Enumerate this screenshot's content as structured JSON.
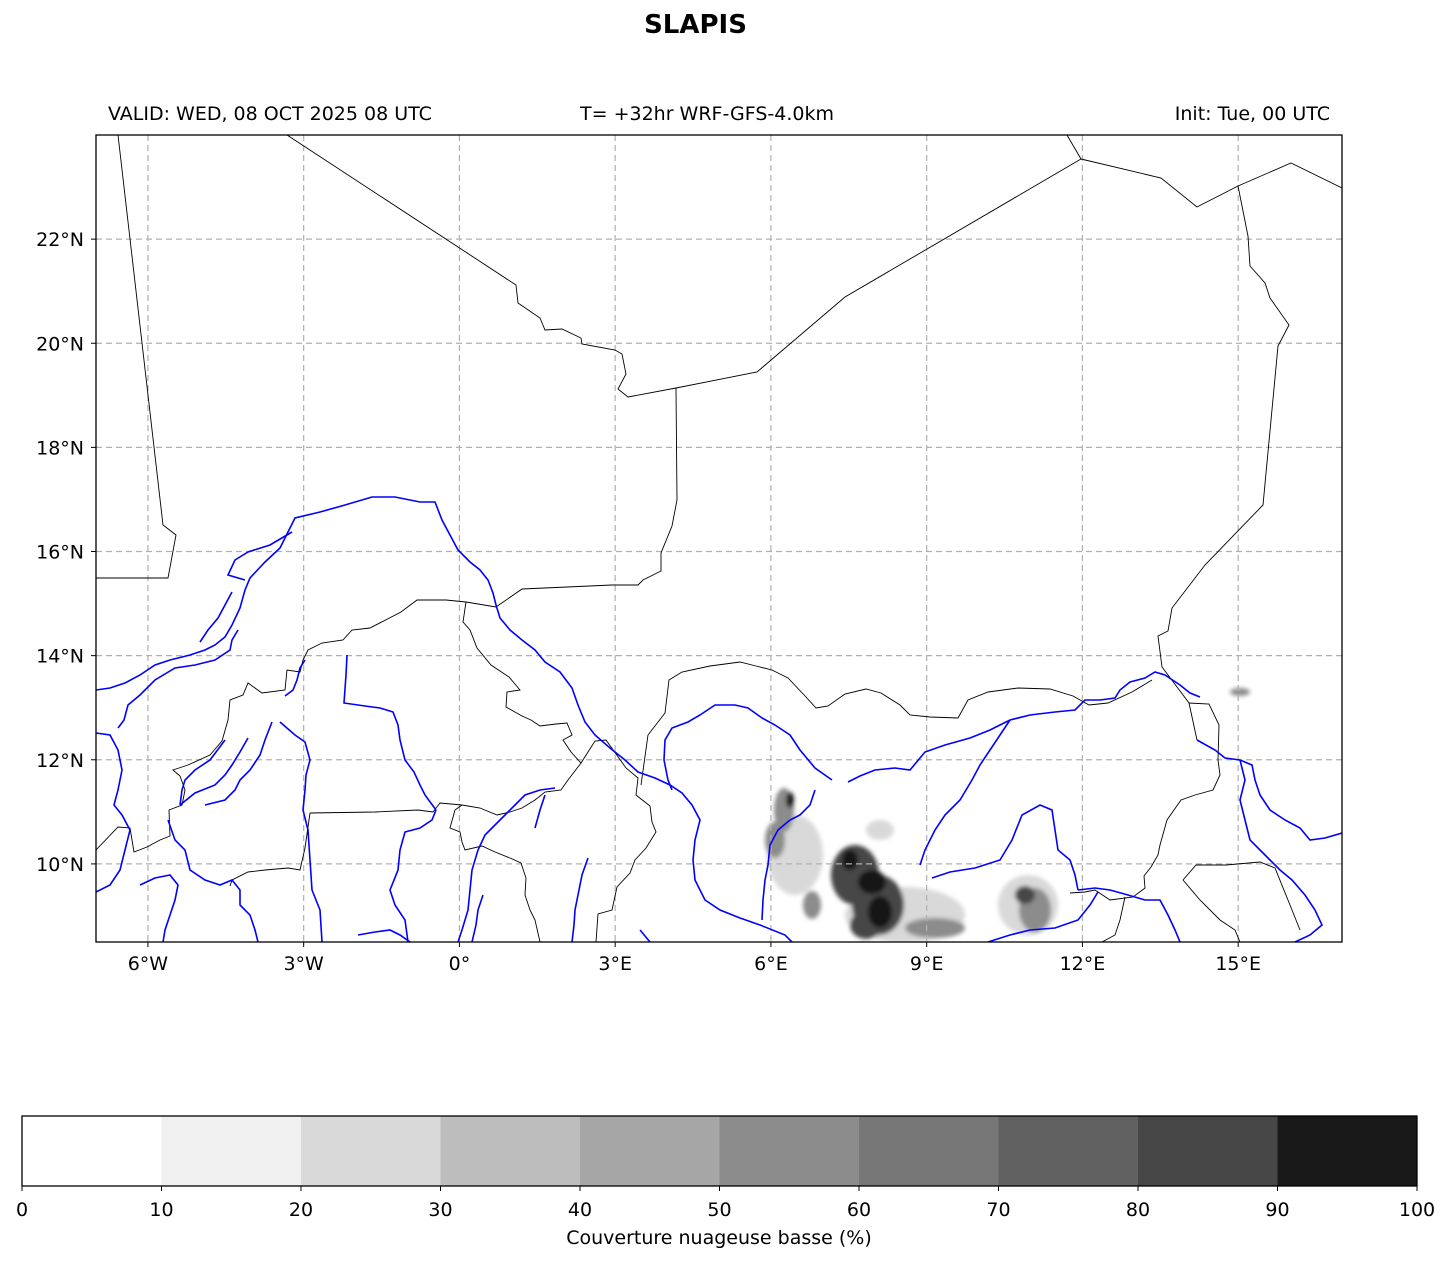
{
  "title": "SLAPIS",
  "header": {
    "valid": "VALID: WED, 08 OCT 2025 08 UTC",
    "forecast": "T= +32hr WRF-GFS-4.0km",
    "init": "Init: Tue, 00 UTC"
  },
  "map": {
    "lon_range": [
      -7,
      17
    ],
    "lat_range": [
      8.5,
      24
    ],
    "lon_ticks": [
      {
        "value": -6,
        "label": "6°W"
      },
      {
        "value": -3,
        "label": "3°W"
      },
      {
        "value": 0,
        "label": "0°"
      },
      {
        "value": 3,
        "label": "3°E"
      },
      {
        "value": 6,
        "label": "6°E"
      },
      {
        "value": 9,
        "label": "9°E"
      },
      {
        "value": 12,
        "label": "12°E"
      },
      {
        "value": 15,
        "label": "15°E"
      }
    ],
    "lat_ticks": [
      {
        "value": 22,
        "label": "22°N"
      },
      {
        "value": 20,
        "label": "20°N"
      },
      {
        "value": 18,
        "label": "18°N"
      },
      {
        "value": 16,
        "label": "16°N"
      },
      {
        "value": 14,
        "label": "14°N"
      },
      {
        "value": 12,
        "label": "12°N"
      },
      {
        "value": 10,
        "label": "10°N"
      }
    ],
    "gridlines": true,
    "colors": {
      "rivers": "#0000ff",
      "borders": "#000000",
      "grid": "#b0b0b0"
    }
  },
  "colorbar": {
    "label": "Couverture nuageuse basse (%)",
    "ticks": [
      "0",
      "10",
      "20",
      "30",
      "40",
      "50",
      "60",
      "70",
      "80",
      "90",
      "100"
    ],
    "colors": [
      "#ffffff",
      "#f0f0f0",
      "#d9d9d9",
      "#bdbdbd",
      "#a6a6a6",
      "#8c8c8c",
      "#777777",
      "#616161",
      "#474747",
      "#191919"
    ]
  }
}
